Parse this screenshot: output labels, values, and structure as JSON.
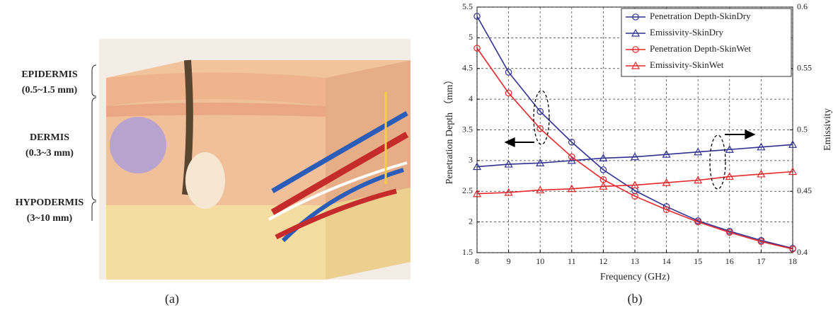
{
  "panel_a": {
    "labels": [
      "EPIDERMIS",
      "(0.5~1.5 mm)",
      "DERMIS",
      "(0.3~3 mm)",
      "HYPODERMIS",
      "(3~10 mm)"
    ],
    "caption": "(a)"
  },
  "chart_data": {
    "type": "line",
    "caption": "(b)",
    "x_label": "Frequency (GHz)",
    "y_label": "Penetration Depth （mm）",
    "y2_label": "Emissivity",
    "x": [
      8,
      9,
      10,
      11,
      12,
      13,
      14,
      15,
      16,
      17,
      18
    ],
    "xlim": [
      8,
      18
    ],
    "xticks": [
      8,
      9,
      10,
      11,
      12,
      13,
      14,
      15,
      16,
      17,
      18
    ],
    "ylim": [
      1.5,
      5.5
    ],
    "yticks": [
      1.5,
      2,
      2.5,
      3,
      3.5,
      4,
      4.5,
      5,
      5.5
    ],
    "y2lim": [
      0.4,
      0.6
    ],
    "y2ticks": [
      0.4,
      0.45,
      0.5,
      0.55,
      0.6
    ],
    "grid": true,
    "legend": "upper right",
    "series": [
      {
        "name": "Penetration Depth-SkinDry",
        "color": "#2e3192",
        "marker": "circle",
        "values": [
          5.35,
          4.44,
          3.8,
          3.3,
          2.85,
          2.51,
          2.25,
          2.02,
          1.85,
          1.7,
          1.57
        ]
      },
      {
        "name": "Emissivity-SkinDry",
        "color": "#2e3192",
        "marker": "triangle",
        "axis": "y2",
        "values": [
          0.47,
          0.472,
          0.473,
          0.475,
          0.477,
          0.478,
          0.48,
          0.482,
          0.484,
          0.486,
          0.488
        ]
      },
      {
        "name": "Penetration Depth-SkinWet",
        "color": "#e8262a",
        "marker": "circle",
        "values": [
          4.83,
          4.1,
          3.52,
          3.06,
          2.69,
          2.42,
          2.2,
          2.0,
          1.83,
          1.68,
          1.56
        ]
      },
      {
        "name": "Emissivity-SkinWet",
        "color": "#e8262a",
        "marker": "triangle",
        "axis": "y2",
        "values": [
          0.448,
          0.449,
          0.451,
          0.452,
          0.454,
          0.455,
          0.457,
          0.459,
          0.462,
          0.464,
          0.466
        ]
      }
    ]
  }
}
